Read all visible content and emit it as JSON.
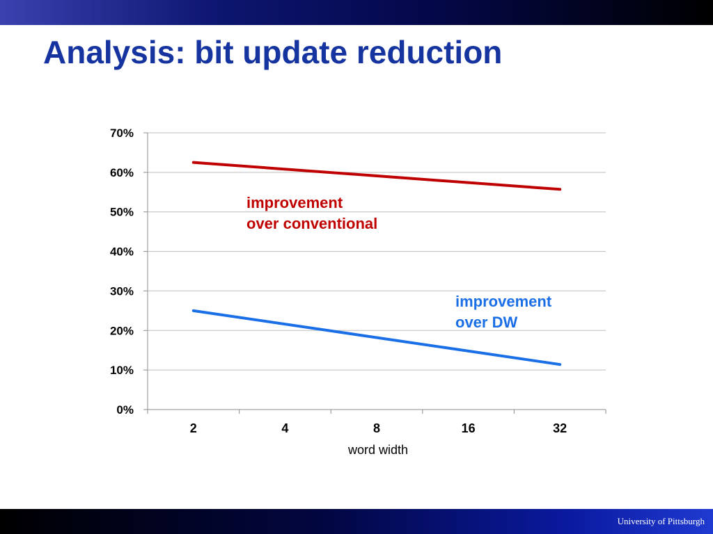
{
  "slide": {
    "title": "Analysis: bit update reduction",
    "footer": "University of Pittsburgh"
  },
  "colors": {
    "title": "#1634a0",
    "series_conventional": "#c00000",
    "series_dw": "#1a6fe6",
    "grid": "#bdbdbd"
  },
  "chart_data": {
    "type": "line",
    "title": "",
    "xlabel": "word width",
    "ylabel": "",
    "categories": [
      "2",
      "4",
      "8",
      "16",
      "32"
    ],
    "ylim": [
      0,
      0.7
    ],
    "yticks": [
      "0%",
      "10%",
      "20%",
      "30%",
      "40%",
      "50%",
      "60%",
      "70%"
    ],
    "grid": true,
    "legend": "none",
    "series": [
      {
        "label_lines": [
          "improvement",
          "over conventional"
        ],
        "color": "#c00000",
        "values": [
          0.625,
          null,
          null,
          null,
          0.557
        ]
      },
      {
        "label_lines": [
          "improvement",
          "over DW"
        ],
        "color": "#1a6fe6",
        "values": [
          0.25,
          null,
          null,
          null,
          0.114
        ]
      }
    ]
  }
}
